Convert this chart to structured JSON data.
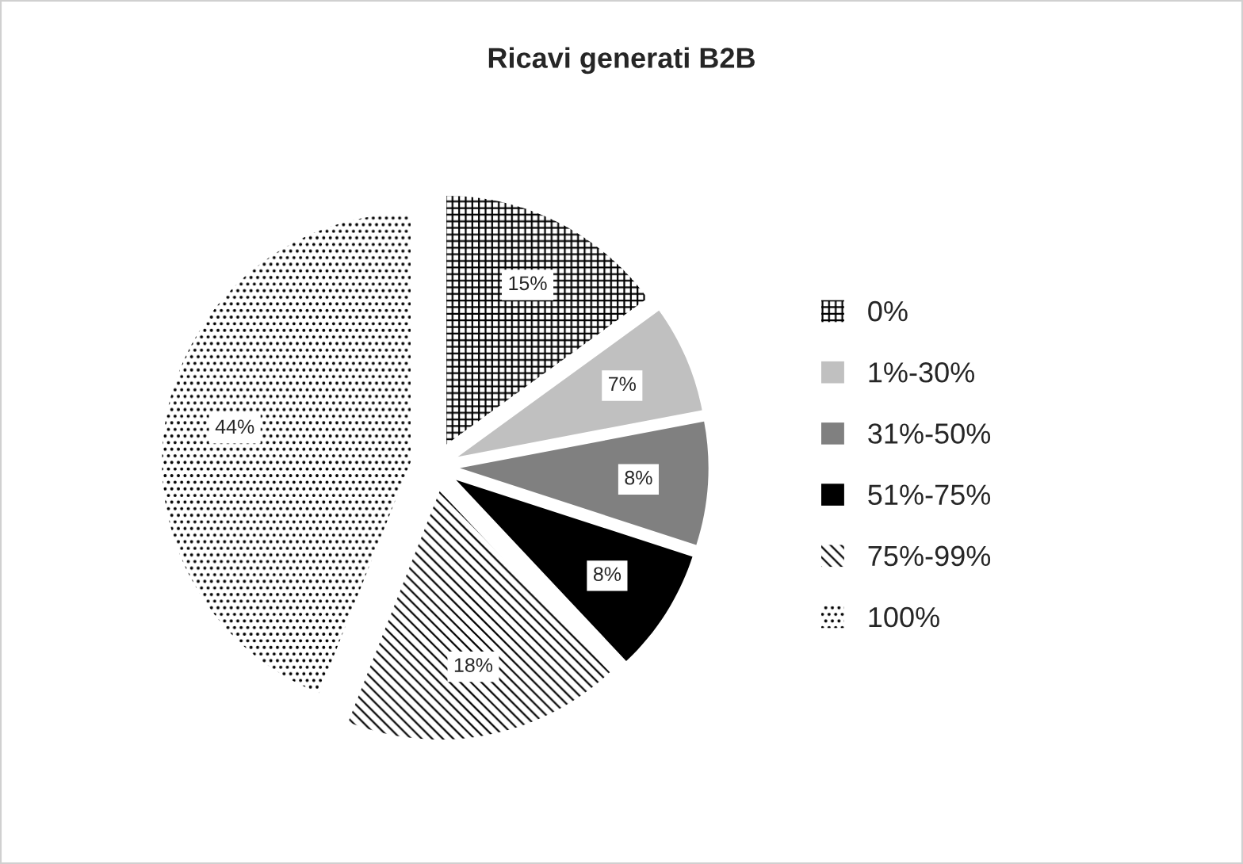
{
  "chart_data": {
    "type": "pie",
    "title": "Ricavi generati B2B",
    "categories": [
      "0%",
      "1%-30%",
      "31%-50%",
      "51%-75%",
      "75%-99%",
      "100%"
    ],
    "values": [
      15,
      7,
      8,
      8,
      18,
      44
    ],
    "colors": [
      "#ffffff",
      "#c0c0c0",
      "#808080",
      "#000000",
      "#ffffff",
      "#ffffff"
    ],
    "value_labels": [
      "15%",
      "7%",
      "8%",
      "8%",
      "18%",
      "44%"
    ],
    "legend": "right"
  }
}
